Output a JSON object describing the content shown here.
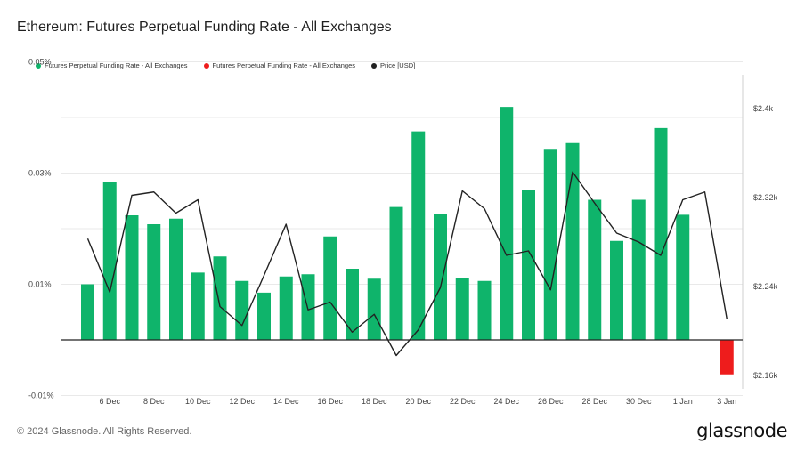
{
  "title": "Ethereum: Futures Perpetual Funding Rate - All Exchanges",
  "legend": [
    {
      "label": "Futures Perpetual Funding Rate - All Exchanges",
      "color": "#0fb46b"
    },
    {
      "label": "Futures Perpetual Funding Rate - All Exchanges",
      "color": "#ee1c1c"
    },
    {
      "label": "Price [USD]",
      "color": "#222222"
    }
  ],
  "footer": "© 2024 Glassnode. All Rights Reserved.",
  "brand": "glassnode",
  "chart_data": {
    "type": "bar",
    "x": [
      "5 Dec",
      "6 Dec",
      "7 Dec",
      "8 Dec",
      "9 Dec",
      "10 Dec",
      "11 Dec",
      "12 Dec",
      "13 Dec",
      "14 Dec",
      "15 Dec",
      "16 Dec",
      "17 Dec",
      "18 Dec",
      "19 Dec",
      "20 Dec",
      "21 Dec",
      "22 Dec",
      "23 Dec",
      "24 Dec",
      "25 Dec",
      "26 Dec",
      "27 Dec",
      "28 Dec",
      "29 Dec",
      "30 Dec",
      "31 Dec",
      "1 Jan",
      "2 Jan",
      "3 Jan"
    ],
    "x_tick_labels": [
      "6 Dec",
      "8 Dec",
      "10 Dec",
      "12 Dec",
      "14 Dec",
      "16 Dec",
      "18 Dec",
      "20 Dec",
      "22 Dec",
      "24 Dec",
      "26 Dec",
      "28 Dec",
      "30 Dec",
      "1 Jan",
      "3 Jan"
    ],
    "series": [
      {
        "name": "Futures Perpetual Funding Rate - All Exchanges",
        "axis": "left",
        "values": [
          0.01,
          0.0284,
          0.0224,
          0.0208,
          0.0218,
          0.0121,
          0.015,
          0.0106,
          0.0085,
          0.0114,
          0.0118,
          0.0186,
          0.0128,
          0.011,
          0.0239,
          0.0375,
          0.0227,
          0.0112,
          0.0106,
          0.0419,
          0.0269,
          0.0342,
          0.0354,
          0.0252,
          0.0178,
          0.0252,
          0.0381,
          0.0225,
          null,
          -0.0062
        ]
      },
      {
        "name": "Price [USD]",
        "axis": "right",
        "values": [
          2283,
          2235,
          2322,
          2325,
          2306,
          2318,
          2222,
          2205,
          2250,
          2296,
          2219,
          2226,
          2199,
          2215,
          2178,
          2201,
          2239,
          2326,
          2310,
          2268,
          2272,
          2237,
          2343,
          2315,
          2288,
          2280,
          2268,
          2318,
          2325,
          2211
        ]
      }
    ],
    "y_left": {
      "ticks": [
        0.05,
        0.03,
        0.01,
        -0.01
      ],
      "tick_labels": [
        "0.05%",
        "0.03%",
        "0.01%",
        "-0.01%"
      ],
      "range": [
        -0.01,
        0.05
      ]
    },
    "y_right": {
      "ticks": [
        2400,
        2320,
        2240,
        2160
      ],
      "tick_labels": [
        "$2.4k",
        "$2.32k",
        "$2.24k",
        "$2.16k"
      ],
      "range": [
        2160,
        2400
      ]
    },
    "positive_color": "#0fb46b",
    "negative_color": "#ee1c1c",
    "price_color": "#222222",
    "grid": true,
    "legend_position": "top-left"
  }
}
